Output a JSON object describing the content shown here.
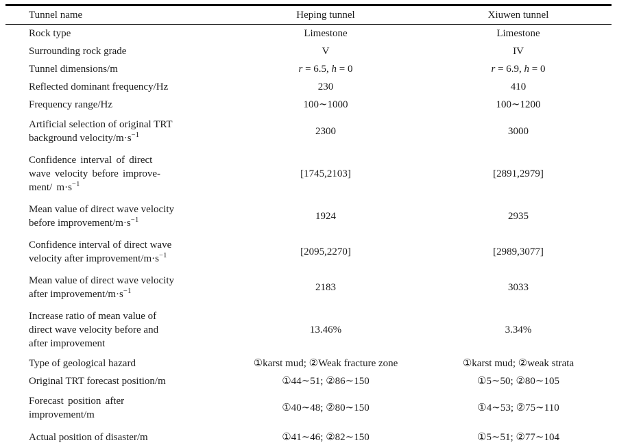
{
  "table": {
    "header": {
      "col1": "Tunnel name",
      "col2": "Heping tunnel",
      "col3": "Xiuwen tunnel"
    },
    "rows": [
      {
        "label": [
          "Rock type"
        ],
        "heping": "Limestone",
        "xiuwen": "Limestone"
      },
      {
        "label": [
          "Surrounding rock grade"
        ],
        "heping": "V",
        "xiuwen": "IV"
      },
      {
        "label": [
          "Tunnel dimensions/m"
        ],
        "heping_math": [
          "r",
          " = 6.5, ",
          "h",
          " = 0"
        ],
        "xiuwen_math": [
          "r",
          " = 6.9, ",
          "h",
          " = 0"
        ]
      },
      {
        "label": [
          "Reflected dominant frequency/Hz"
        ],
        "heping": "230",
        "xiuwen": "410"
      },
      {
        "label": [
          "Frequency range/Hz"
        ],
        "heping": "100∼1000",
        "xiuwen": "100∼1200"
      },
      {
        "label": [
          "Artificial selection of original TRT",
          "background velocity/m·s"
        ],
        "sup": "−1",
        "heping": "2300",
        "xiuwen": "3000"
      },
      {
        "label": [
          "Confidence interval of direct",
          "wave velocity before improve-",
          "ment/ m·s"
        ],
        "sup": "−1",
        "heping": "[1745,2103]",
        "xiuwen": "[2891,2979]"
      },
      {
        "label": [
          "Mean value of direct wave velocity",
          "before improvement/m·s"
        ],
        "sup": "−1",
        "heping": "1924",
        "xiuwen": "2935"
      },
      {
        "label": [
          "Confidence interval of direct wave",
          "velocity after improvement/m·s"
        ],
        "sup": "−1",
        "heping": "[2095,2270]",
        "xiuwen": "[2989,3077]"
      },
      {
        "label": [
          "Mean value of direct wave velocity",
          "after improvement/m·s"
        ],
        "sup": "−1",
        "heping": "2183",
        "xiuwen": "3033"
      },
      {
        "label": [
          "Increase ratio of mean value of",
          "direct wave velocity before and",
          "after improvement"
        ],
        "heping": "13.46%",
        "xiuwen": "3.34%"
      },
      {
        "label": [
          "Type of geological hazard"
        ],
        "heping": "①karst mud; ②Weak fracture zone",
        "xiuwen": "①karst mud; ②weak strata"
      },
      {
        "label": [
          "Original TRT forecast position/m"
        ],
        "heping": "①44∼51; ②86∼150",
        "xiuwen": "①5∼50; ②80∼105"
      },
      {
        "label": [
          "Forecast position after",
          "improvement/m"
        ],
        "heping": "①40∼48; ②80∼150",
        "xiuwen": "①4∼53; ②75∼110"
      },
      {
        "label": [
          "Actual position of disaster/m"
        ],
        "heping": "①41∼46; ②82∼150",
        "xiuwen": "①5∼51; ②77∼104"
      }
    ]
  }
}
